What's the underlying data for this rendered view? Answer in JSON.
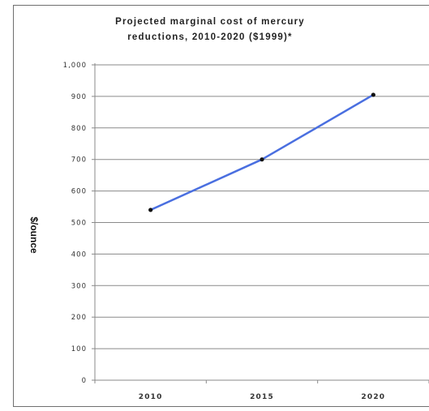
{
  "chart_data": {
    "type": "line",
    "title": "Projected marginal cost of mercury\nreductions, 2010-2020 ($1999)*",
    "ylabel": "$/ounce",
    "xlabel": "",
    "categories": [
      "2010",
      "2015",
      "2020"
    ],
    "series": [
      {
        "values": [
          540,
          700,
          905
        ]
      }
    ],
    "ylim": [
      0,
      1000
    ],
    "yticks": [
      0,
      100,
      200,
      300,
      400,
      500,
      600,
      700,
      800,
      900,
      1000
    ],
    "ytick_labels": [
      "0",
      "100",
      "200",
      "300",
      "400",
      "500",
      "600",
      "700",
      "800",
      "900",
      "1,000"
    ],
    "grid": true,
    "line_color": "#4a6fe0",
    "marker_color": "#111111"
  }
}
